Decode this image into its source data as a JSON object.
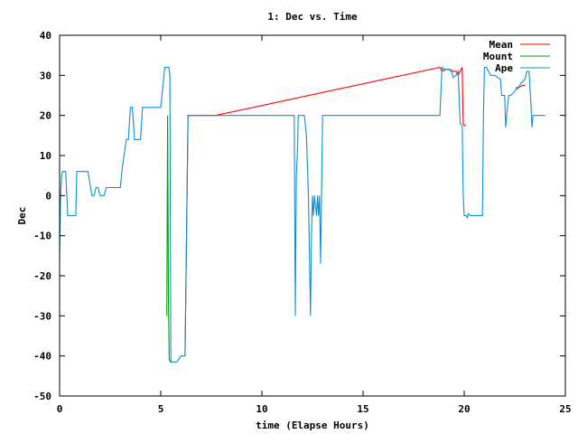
{
  "chart_data": {
    "type": "line",
    "title": "1: Dec vs. Time",
    "xlabel": "time (Elapse Hours)",
    "ylabel": "Dec",
    "xlim": [
      0,
      25
    ],
    "ylim": [
      -50,
      40
    ],
    "xticks": [
      0,
      5,
      10,
      15,
      20,
      25
    ],
    "yticks": [
      -50,
      -40,
      -30,
      -20,
      -10,
      0,
      10,
      20,
      30,
      40
    ],
    "grid": false,
    "legend_position": "top-right",
    "series": [
      {
        "name": "Mean",
        "color": "#ff0000",
        "x": [
          6.2,
          6.35,
          7.7,
          18.8,
          18.9,
          19.1,
          19.3,
          19.45,
          19.5,
          19.6,
          19.7,
          19.8,
          19.9,
          19.95,
          20.0,
          20.1,
          20.15,
          22.6,
          22.7,
          22.9,
          23.0
        ],
        "y": [
          -40,
          20,
          20,
          32,
          31,
          31.5,
          31.5,
          31,
          31,
          31,
          30,
          31,
          32,
          18,
          17.5,
          17.5,
          null,
          26.5,
          27,
          27.5,
          27.5
        ]
      },
      {
        "name": "Mount",
        "color": "#00a000",
        "x": [
          5.3,
          5.34,
          5.38,
          5.42,
          5.48,
          5.6
        ],
        "y": [
          -30,
          20,
          -25,
          -41,
          -41.5,
          -41.5
        ]
      },
      {
        "name": "Ape",
        "color": "#0d8fd8",
        "x": [
          0,
          0.05,
          0.1,
          0.15,
          0.3,
          0.4,
          0.8,
          0.85,
          1.2,
          1.4,
          1.6,
          1.7,
          1.8,
          1.9,
          2.0,
          2.1,
          2.2,
          2.3,
          2.4,
          2.5,
          2.6,
          2.7,
          3.0,
          3.1,
          3.3,
          3.4,
          3.5,
          3.6,
          3.7,
          3.8,
          4.0,
          4.1,
          4.2,
          5.0,
          5.2,
          5.4,
          5.45,
          5.5,
          5.7,
          5.8,
          6.0,
          6.2,
          6.35,
          6.4,
          11.6,
          11.65,
          11.7,
          11.75,
          11.8,
          11.9,
          12.0,
          12.1,
          12.2,
          12.3,
          12.4,
          12.45,
          12.5,
          12.55,
          12.6,
          12.7,
          12.75,
          12.8,
          12.85,
          12.9,
          13.0,
          13.05,
          13.1,
          13.2,
          18.8,
          18.9,
          19.0,
          19.3,
          19.4,
          19.45,
          19.6,
          19.7,
          19.8,
          19.9,
          19.95,
          20.0,
          20.1,
          20.15,
          20.2,
          20.3,
          20.4,
          20.5,
          20.9,
          20.95,
          21.0,
          21.1,
          21.2,
          21.3,
          21.4,
          21.5,
          21.8,
          21.85,
          22.0,
          22.05,
          22.1,
          22.2,
          22.3,
          22.5,
          22.6,
          22.7,
          22.8,
          23.0,
          23.1,
          23.2,
          23.3,
          23.35,
          23.4,
          23.5,
          23.6,
          24.0
        ],
        "y": [
          -15,
          0,
          5,
          6,
          6,
          -5,
          -5,
          6,
          6,
          6,
          0,
          0,
          2,
          2,
          0,
          0,
          0,
          2,
          2,
          2,
          2,
          2,
          2,
          7,
          14,
          14,
          22,
          22,
          14,
          14,
          14,
          22,
          22,
          22,
          32,
          32,
          30,
          -41.5,
          -41.5,
          -41.5,
          -40,
          -40,
          20,
          20,
          20,
          -30,
          5,
          10,
          20,
          20,
          20,
          20,
          15,
          0,
          -30,
          -10,
          0,
          -5,
          0,
          -5,
          0,
          -5,
          0,
          -17,
          20,
          20,
          20,
          20,
          20,
          32,
          31.5,
          31.5,
          30.5,
          29.5,
          30,
          31,
          18,
          17.5,
          0,
          -5,
          -5,
          -5.5,
          -4.5,
          -5,
          -5,
          -5,
          -5,
          20,
          32,
          32,
          31,
          30,
          30,
          30,
          29,
          25,
          25,
          17,
          20,
          25,
          25,
          26,
          27,
          27,
          28,
          29,
          31,
          31,
          23,
          17,
          20,
          20,
          20,
          20
        ]
      }
    ]
  }
}
